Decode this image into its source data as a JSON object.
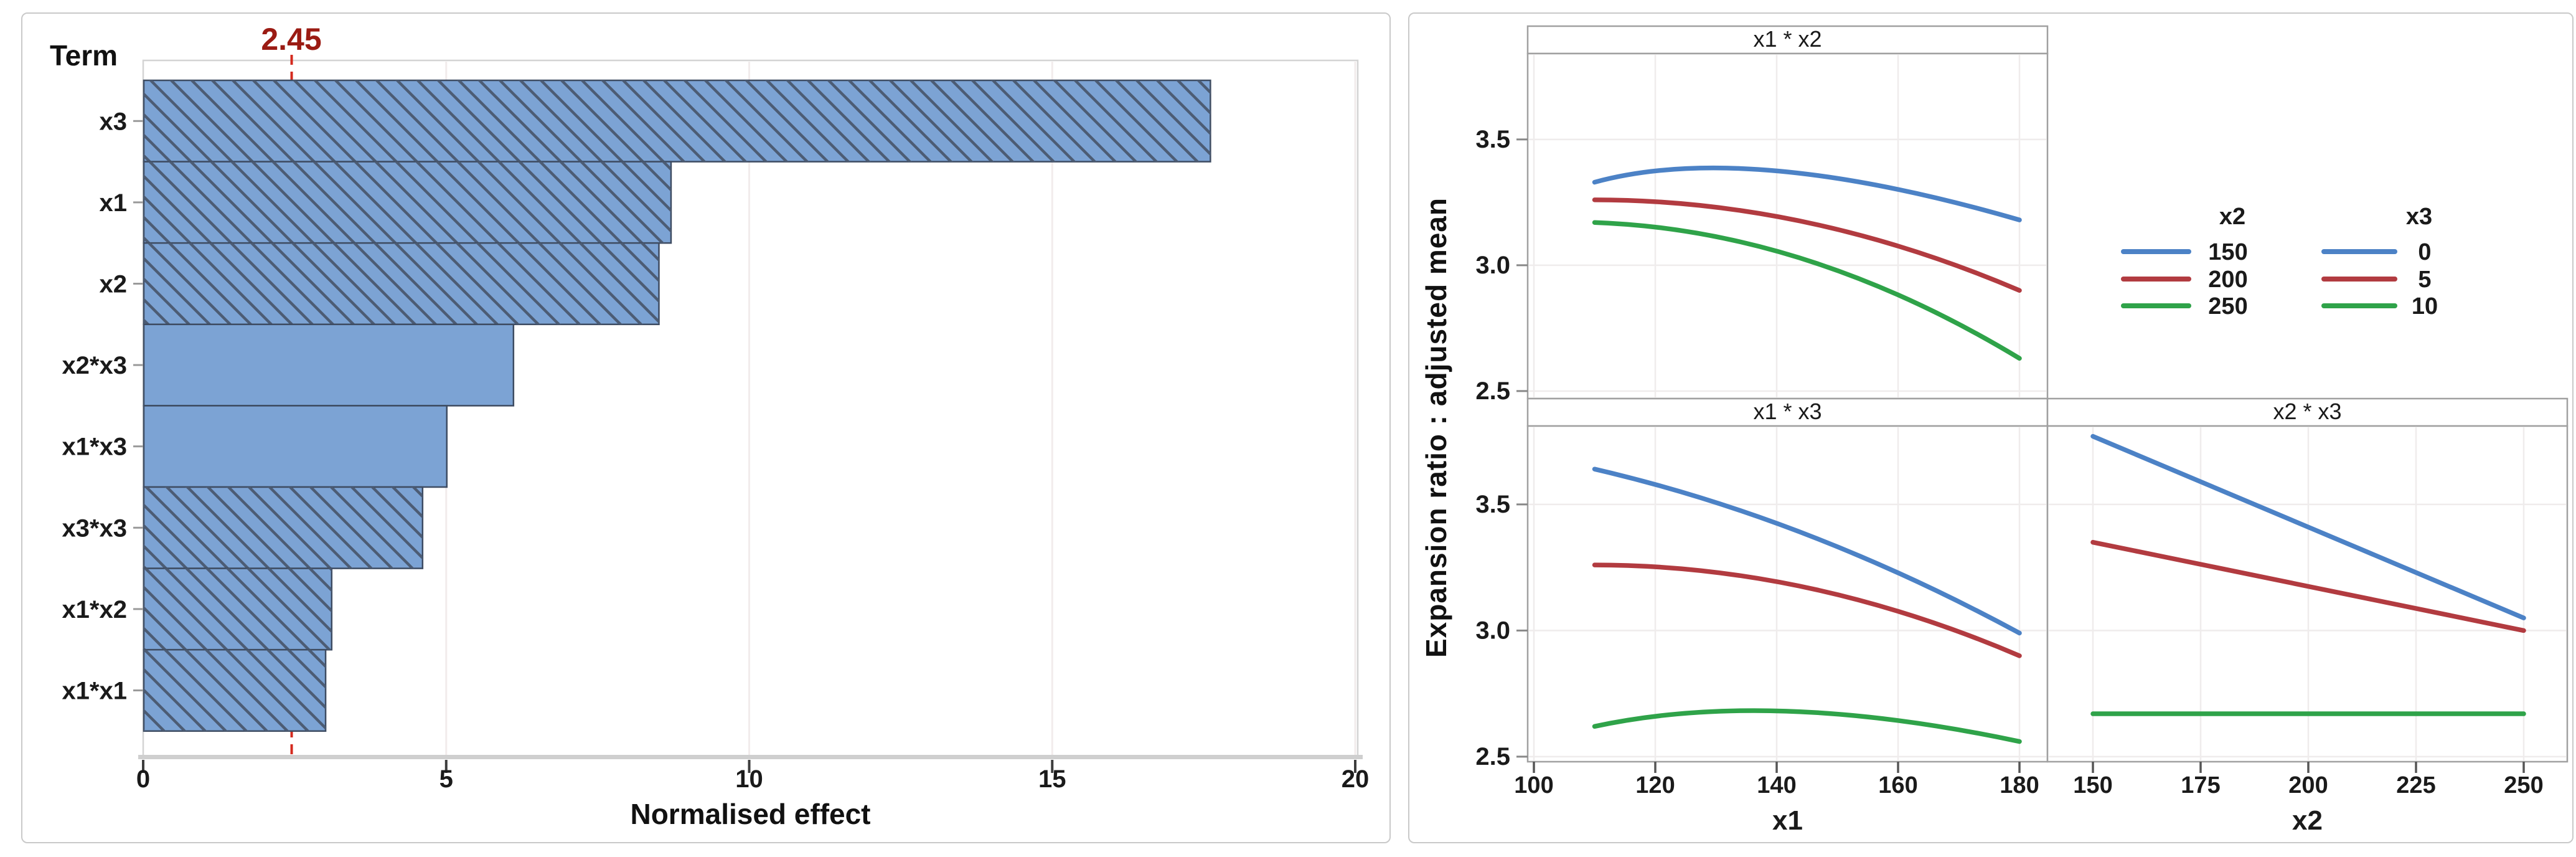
{
  "chart_data": [
    {
      "id": "pareto",
      "type": "bar",
      "orientation": "horizontal",
      "title_column": "Term",
      "xlabel": "Normalised effect",
      "categories": [
        "x3",
        "x1",
        "x2",
        "x2*x3",
        "x1*x3",
        "x3*x3",
        "x1*x2",
        "x1*x1"
      ],
      "values": [
        17.6,
        8.7,
        8.5,
        6.1,
        5.0,
        4.6,
        3.1,
        3.0
      ],
      "hatched": [
        true,
        true,
        true,
        false,
        false,
        true,
        true,
        true
      ],
      "x_ticks": [
        "0",
        "5",
        "10",
        "15",
        "20"
      ],
      "xlim": [
        0,
        20
      ],
      "grid": "vertical",
      "reference_line": {
        "value": 2.45,
        "label": "2.45"
      },
      "colors": {
        "bar_fill": "#7CA3D4",
        "bar_hatch": "#4C5C74",
        "bar_border": "#3E4C62",
        "reference_line": "#D42A1E",
        "reference_label": "#9B1B13",
        "grid": "#F2ECEC",
        "axis_band": "#CFCFCF"
      }
    },
    {
      "id": "interaction",
      "type": "line",
      "ylabel": "Expansion ratio : adjusted mean",
      "y_ticks": [
        "2.5",
        "3.0",
        "3.5"
      ],
      "ylim": [
        2.47,
        3.84
      ],
      "grid": "both",
      "legend_position": "top-right-cell",
      "colors": {
        "blue": "#4C82C6",
        "red": "#B23B40",
        "green": "#2FA349",
        "grid": "#EFECEC",
        "frame": "#A0A0A0"
      },
      "legend": [
        {
          "title": "x2",
          "entries": [
            {
              "label": "150",
              "color": "blue"
            },
            {
              "label": "200",
              "color": "red"
            },
            {
              "label": "250",
              "color": "green"
            }
          ]
        },
        {
          "title": "x3",
          "entries": [
            {
              "label": "0",
              "color": "blue"
            },
            {
              "label": "5",
              "color": "red"
            },
            {
              "label": "10",
              "color": "green"
            }
          ]
        }
      ],
      "panels": [
        {
          "title": "x1 * x2",
          "row": 0,
          "col": 0,
          "xlabel": null,
          "x_ticks": [
            100,
            120,
            140,
            160,
            180
          ],
          "series": [
            {
              "name": "150",
              "color": "blue",
              "points": [
                [
                  110,
                  3.33
                ],
                [
                  140,
                  3.375
                ],
                [
                  180,
                  3.18
                ]
              ]
            },
            {
              "name": "200",
              "color": "red",
              "points": [
                [
                  110,
                  3.26
                ],
                [
                  145,
                  3.17
                ],
                [
                  180,
                  2.9
                ]
              ]
            },
            {
              "name": "250",
              "color": "green",
              "points": [
                [
                  110,
                  3.17
                ],
                [
                  145,
                  3.02
                ],
                [
                  180,
                  2.63
                ]
              ]
            }
          ]
        },
        {
          "title": "x1 * x3",
          "row": 1,
          "col": 0,
          "xlabel": "x1",
          "x_ticks": [
            100,
            120,
            140,
            160,
            180
          ],
          "series": [
            {
              "name": "0",
              "color": "blue",
              "points": [
                [
                  110,
                  3.64
                ],
                [
                  145,
                  3.38
                ],
                [
                  180,
                  2.99
                ]
              ]
            },
            {
              "name": "5",
              "color": "red",
              "points": [
                [
                  110,
                  3.26
                ],
                [
                  145,
                  3.17
                ],
                [
                  180,
                  2.9
                ]
              ]
            },
            {
              "name": "10",
              "color": "green",
              "points": [
                [
                  110,
                  2.62
                ],
                [
                  142,
                  2.68
                ],
                [
                  180,
                  2.56
                ]
              ]
            }
          ]
        },
        {
          "title": "x2 * x3",
          "row": 1,
          "col": 1,
          "xlabel": "x2",
          "x_ticks": [
            150,
            175,
            200,
            225,
            250
          ],
          "series": [
            {
              "name": "0",
              "color": "blue",
              "points": [
                [
                  150,
                  3.77
                ],
                [
                  250,
                  3.05
                ]
              ]
            },
            {
              "name": "5",
              "color": "red",
              "points": [
                [
                  150,
                  3.35
                ],
                [
                  250,
                  3.0
                ]
              ]
            },
            {
              "name": "10",
              "color": "green",
              "points": [
                [
                  150,
                  2.67
                ],
                [
                  250,
                  2.67
                ]
              ]
            }
          ]
        }
      ]
    }
  ]
}
